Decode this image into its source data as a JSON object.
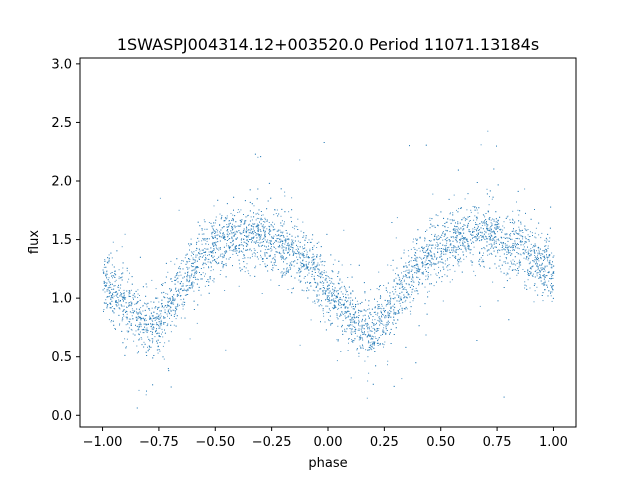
{
  "chart_data": {
    "type": "scatter",
    "title": "1SWASPJ004314.12+003520.0 Period 11071.13184s",
    "xlabel": "phase",
    "ylabel": "flux",
    "xlim": [
      -1.1,
      1.1
    ],
    "ylim": [
      -0.1,
      3.05
    ],
    "xticks": [
      -1.0,
      -0.75,
      -0.5,
      -0.25,
      0.0,
      0.25,
      0.5,
      0.75,
      1.0
    ],
    "xtick_labels": [
      "−1.00",
      "−0.75",
      "−0.50",
      "−0.25",
      "0.00",
      "0.25",
      "0.50",
      "0.75",
      "1.00"
    ],
    "yticks": [
      0.0,
      0.5,
      1.0,
      1.5,
      2.0,
      2.5,
      3.0
    ],
    "ytick_labels": [
      "0.0",
      "0.5",
      "1.0",
      "1.5",
      "2.0",
      "2.5",
      "3.0"
    ],
    "grid": false,
    "marker_color": "#1f77b4",
    "series": [
      {
        "phase": [
          -1.0,
          -0.95,
          -0.9,
          -0.85,
          -0.8,
          -0.75,
          -0.7,
          -0.65,
          -0.6,
          -0.55,
          -0.5,
          -0.45,
          -0.4,
          -0.35,
          -0.3,
          -0.25,
          -0.2,
          -0.15,
          -0.1,
          -0.05,
          0.0,
          0.05,
          0.1,
          0.15,
          0.2,
          0.25,
          0.3,
          0.35,
          0.4,
          0.45,
          0.5,
          0.55,
          0.6,
          0.65,
          0.7,
          0.75,
          0.8,
          0.85,
          0.9,
          0.95,
          1.0
        ],
        "flux": [
          1.15,
          1.05,
          0.93,
          0.82,
          0.75,
          0.8,
          0.95,
          1.12,
          1.27,
          1.38,
          1.45,
          1.5,
          1.52,
          1.53,
          1.52,
          1.5,
          1.45,
          1.38,
          1.3,
          1.2,
          1.08,
          0.95,
          0.83,
          0.75,
          0.72,
          0.83,
          1.0,
          1.15,
          1.28,
          1.38,
          1.45,
          1.5,
          1.53,
          1.55,
          1.55,
          1.52,
          1.48,
          1.42,
          1.35,
          1.28,
          1.2
        ]
      }
    ]
  }
}
